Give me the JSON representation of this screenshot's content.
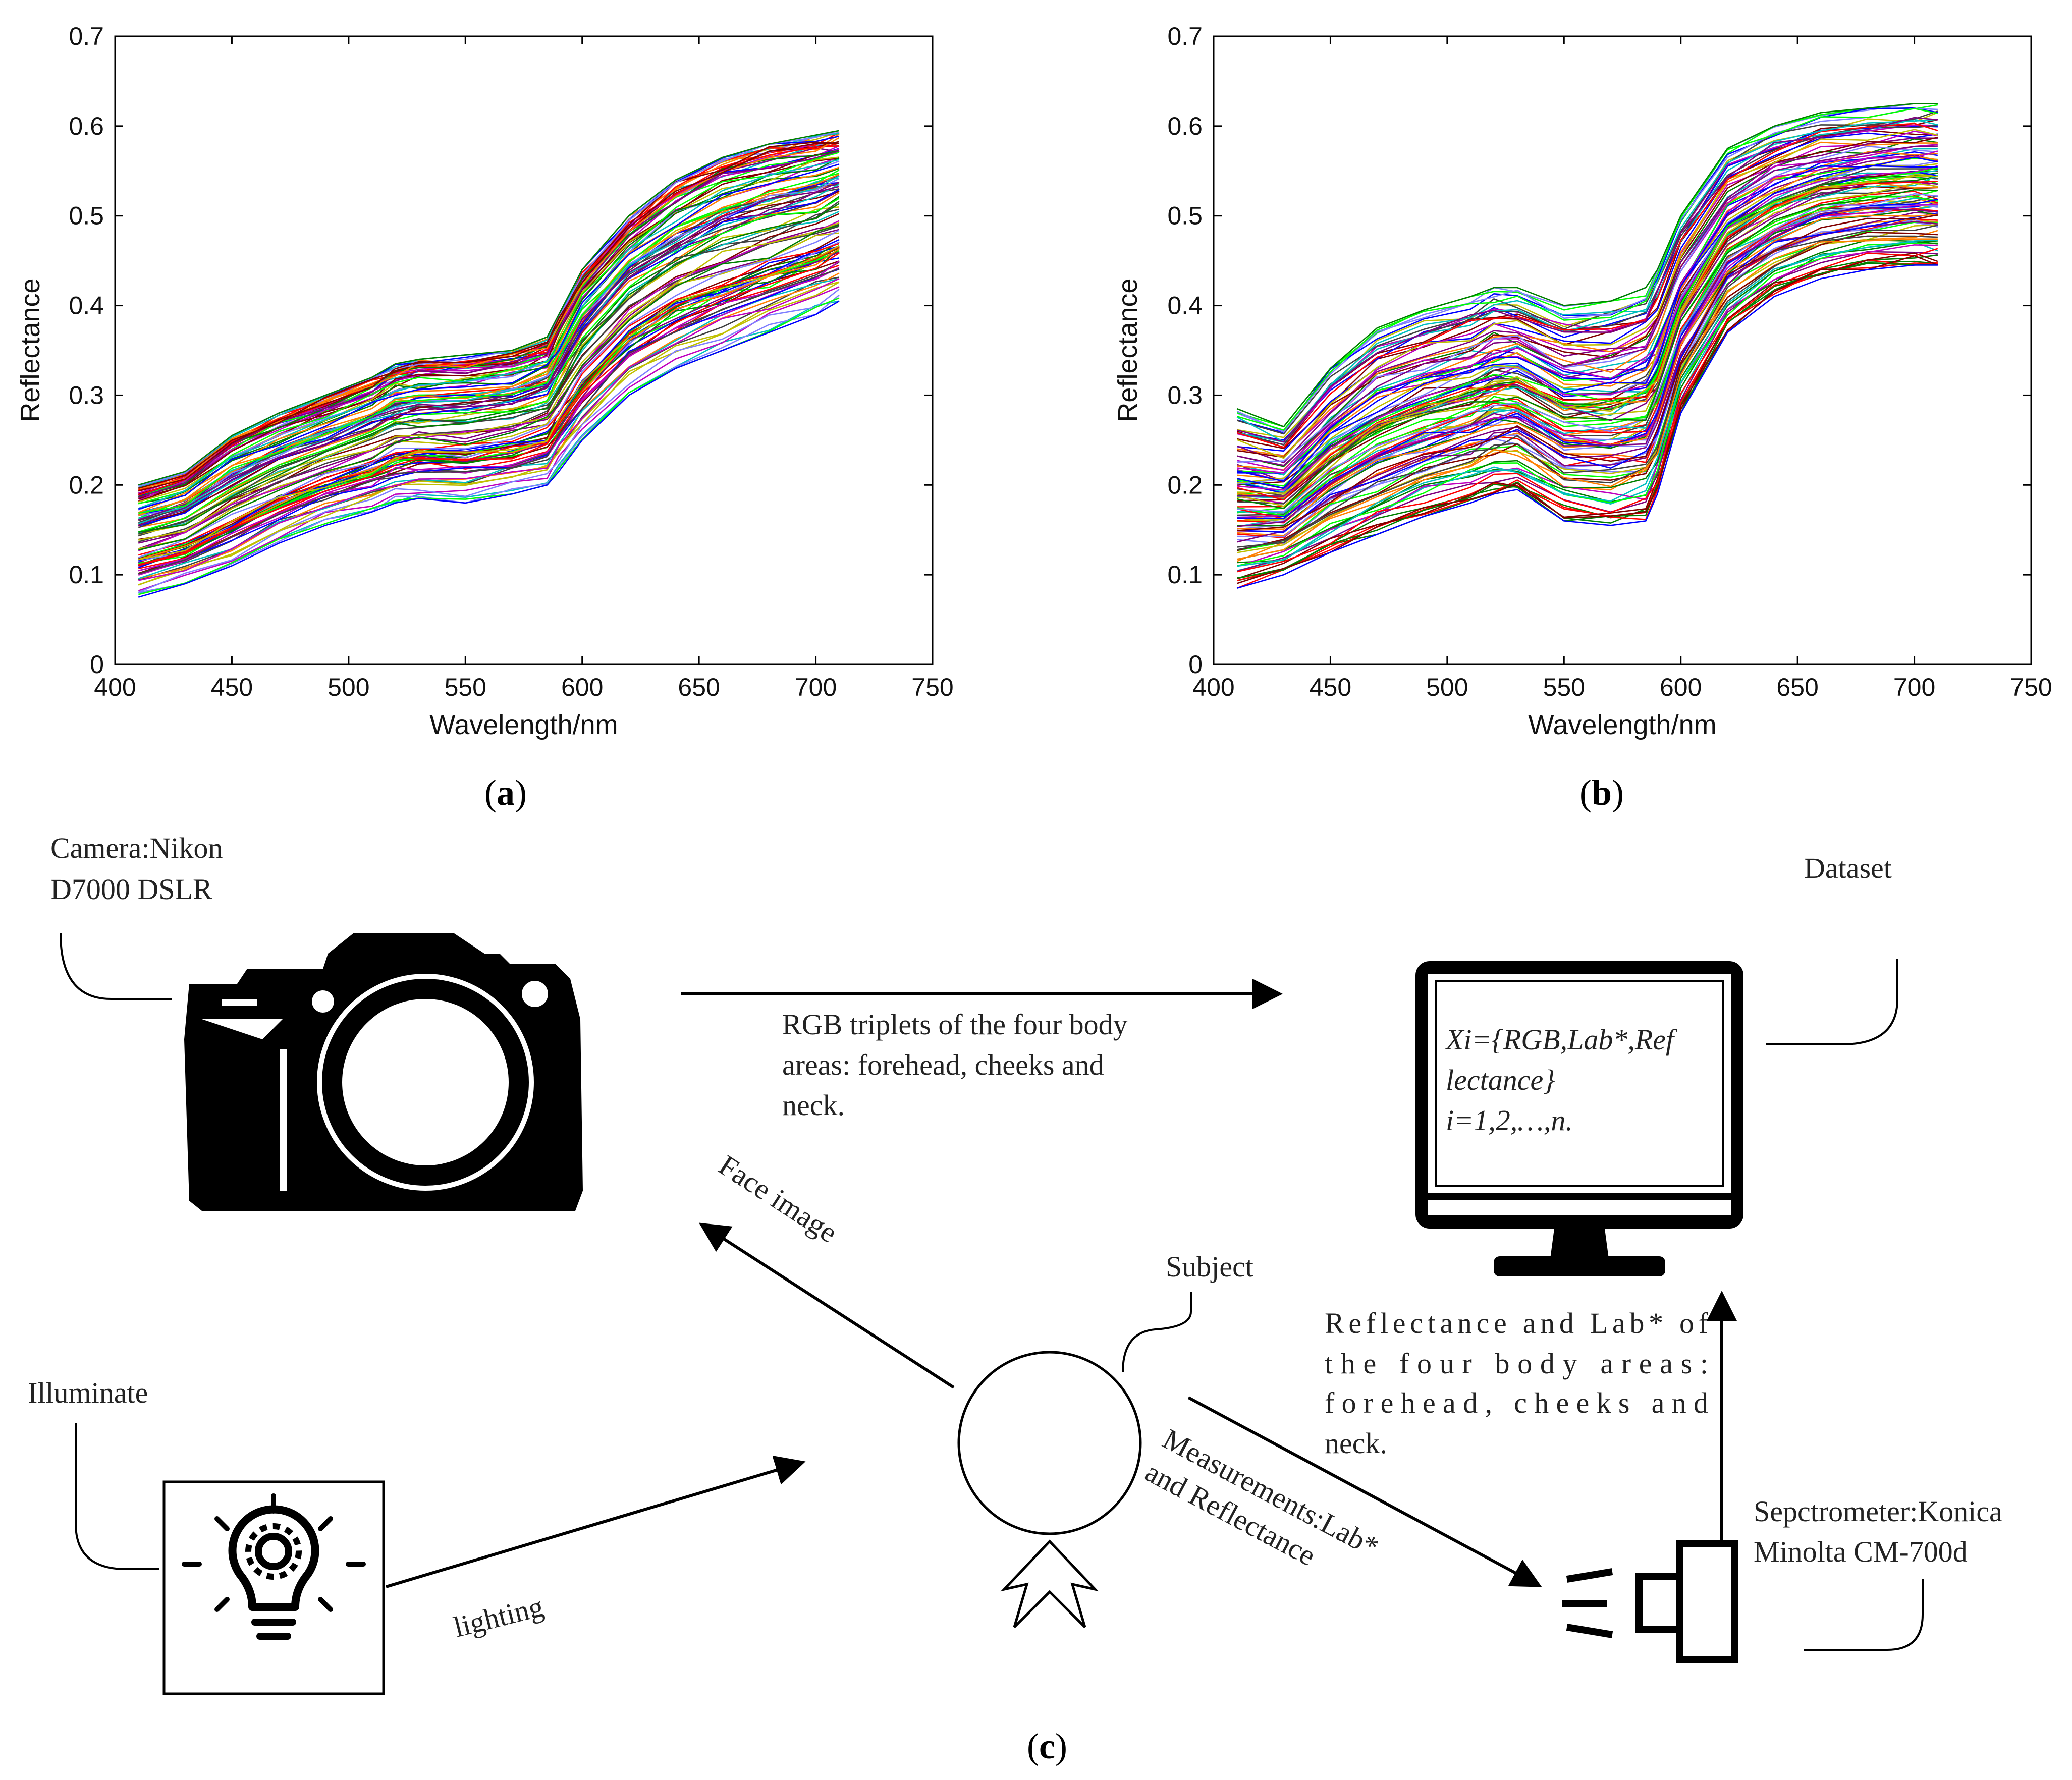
{
  "chart_data": [
    {
      "type": "line",
      "panel_label": "a",
      "xlabel": "Wavelength/nm",
      "ylabel": "Reflectance",
      "xlim": [
        400,
        750
      ],
      "ylim": [
        0,
        0.7
      ],
      "xticks": [
        "400",
        "450",
        "500",
        "550",
        "600",
        "650",
        "700",
        "750"
      ],
      "yticks": [
        "0",
        "0.1",
        "0.2",
        "0.3",
        "0.4",
        "0.5",
        "0.6",
        "0.7"
      ],
      "x": [
        410,
        430,
        450,
        470,
        490,
        510,
        520,
        530,
        550,
        570,
        585,
        590,
        600,
        620,
        640,
        660,
        680,
        700,
        710
      ],
      "series_count": 110,
      "envelope": {
        "lower": [
          0.075,
          0.09,
          0.11,
          0.135,
          0.155,
          0.17,
          0.18,
          0.185,
          0.18,
          0.19,
          0.2,
          0.215,
          0.25,
          0.3,
          0.33,
          0.35,
          0.37,
          0.39,
          0.405
        ],
        "upper": [
          0.2,
          0.215,
          0.255,
          0.28,
          0.3,
          0.32,
          0.335,
          0.34,
          0.345,
          0.35,
          0.365,
          0.39,
          0.44,
          0.5,
          0.54,
          0.565,
          0.58,
          0.59,
          0.595
        ]
      },
      "colors": [
        "#0000ff",
        "#008000",
        "#ff0000",
        "#00bfbf",
        "#bf00bf",
        "#bfbf00",
        "#404040",
        "#7f7fff",
        "#ff7f00",
        "#7f007f",
        "#00ff00",
        "#800000"
      ]
    },
    {
      "type": "line",
      "panel_label": "b",
      "xlabel": "Wavelength/nm",
      "ylabel": "Reflectance",
      "xlim": [
        400,
        750
      ],
      "ylim": [
        0,
        0.7
      ],
      "xticks": [
        "400",
        "450",
        "500",
        "550",
        "600",
        "650",
        "700",
        "750"
      ],
      "yticks": [
        "0",
        "0.1",
        "0.2",
        "0.3",
        "0.4",
        "0.5",
        "0.6",
        "0.7"
      ],
      "x": [
        410,
        430,
        450,
        470,
        490,
        510,
        520,
        530,
        550,
        570,
        585,
        590,
        600,
        620,
        640,
        660,
        680,
        700,
        710
      ],
      "series_count": 110,
      "envelope": {
        "lower": [
          0.085,
          0.1,
          0.125,
          0.145,
          0.165,
          0.18,
          0.19,
          0.195,
          0.16,
          0.155,
          0.16,
          0.19,
          0.28,
          0.37,
          0.41,
          0.43,
          0.44,
          0.445,
          0.445
        ],
        "upper": [
          0.285,
          0.265,
          0.33,
          0.375,
          0.395,
          0.41,
          0.42,
          0.42,
          0.4,
          0.405,
          0.42,
          0.44,
          0.5,
          0.575,
          0.6,
          0.615,
          0.62,
          0.625,
          0.625
        ]
      },
      "colors": [
        "#0000ff",
        "#008000",
        "#ff0000",
        "#00bfbf",
        "#bf00bf",
        "#bfbf00",
        "#404040",
        "#7f7fff",
        "#ff7f00",
        "#7f007f",
        "#00ff00",
        "#800000"
      ]
    }
  ],
  "diagram": {
    "panel_label": "c",
    "camera_label_line1": "Camera:Nikon",
    "camera_label_line2": "D7000 DSLR",
    "dataset_label": "Dataset",
    "rgb_text_line1": "RGB triplets of the four body",
    "rgb_text_line2": "areas: forehead, cheeks and",
    "rgb_text_line3": "neck.",
    "screen_line1": "Xi={RGB,Lab*,Ref",
    "screen_line2": "lectance}",
    "screen_line3": "i=1,2,…,n.",
    "face_image_label": "Face image",
    "subject_label": "Subject",
    "refl_text_line1": "Reflectance and Lab* of",
    "refl_text_line2": "the four body areas:",
    "refl_text_line3": "forehead, cheeks and",
    "refl_text_line4": "neck.",
    "illuminate_label": "Illuminate",
    "lighting_label": "lighting",
    "measure_line1": "Measurements:Lab*",
    "measure_line2": "and Reflectance",
    "spectro_line1": "Sepctrometer:Konica",
    "spectro_line2": "Minolta CM-700d"
  }
}
